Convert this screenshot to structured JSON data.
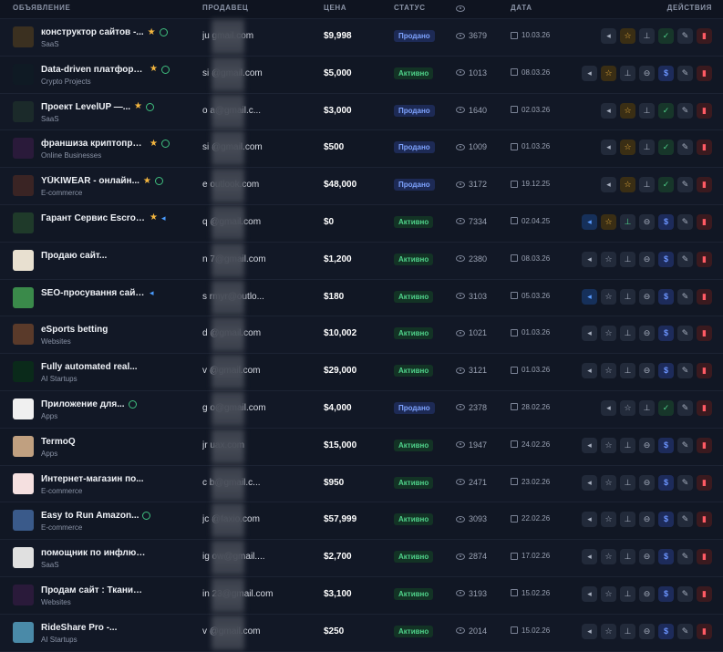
{
  "header": {
    "listing": "ОБЪЯВЛЕНИЕ",
    "seller": "ПРОДАВЕЦ",
    "price": "ЦЕНА",
    "status": "СТАТУС",
    "date": "ДАТА",
    "actions": "ДЕЙСТВИЯ"
  },
  "rows": [
    {
      "title": "конструктор сайтов -...",
      "category": "SaaS",
      "star": true,
      "check": true,
      "promo": false,
      "seller": "ju        gmail.com",
      "price": "$9,998",
      "status": "Продано",
      "status_type": "sold",
      "views": "3679",
      "date": "10.03.26",
      "thumb": "#3b3020",
      "promo_btn": false,
      "star_btn": "gold",
      "dollar": false
    },
    {
      "title": "Data-driven платформа...",
      "category": "Crypto Projects",
      "star": true,
      "check": true,
      "promo": false,
      "seller": "si        @gmail.com",
      "price": "$5,000",
      "status": "Активно",
      "status_type": "active",
      "views": "1013",
      "date": "08.03.26",
      "thumb": "#0f1a24",
      "promo_btn": false,
      "star_btn": "gold",
      "dollar": true
    },
    {
      "title": "Проект LevelUP —...",
      "category": "SaaS",
      "star": true,
      "check": true,
      "promo": false,
      "seller": "o        a@gmail.c...",
      "price": "$3,000",
      "status": "Продано",
      "status_type": "sold",
      "views": "1640",
      "date": "02.03.26",
      "thumb": "#1b2a2a",
      "promo_btn": false,
      "star_btn": "gold",
      "dollar": false
    },
    {
      "title": "франшиза криптопроекта",
      "category": "Online Businesses",
      "star": true,
      "check": true,
      "promo": false,
      "seller": "si        @gmail.com",
      "price": "$500",
      "status": "Продано",
      "status_type": "sold",
      "views": "1009",
      "date": "01.03.26",
      "thumb": "#2a1a3a",
      "promo_btn": false,
      "star_btn": "gold",
      "dollar": false
    },
    {
      "title": "YŪKIWEAR - онлайн...",
      "category": "E-commerce",
      "star": true,
      "check": true,
      "promo": false,
      "seller": "e        outlook.com",
      "price": "$48,000",
      "status": "Продано",
      "status_type": "sold",
      "views": "3172",
      "date": "19.12.25",
      "thumb": "#3a2424",
      "promo_btn": false,
      "star_btn": "gold",
      "dollar": false
    },
    {
      "title": "Гарант Сервис Escrow...",
      "category": "",
      "star": true,
      "check": false,
      "promo": true,
      "seller": "q        @gmail.com",
      "price": "$0",
      "status": "Активно",
      "status_type": "active",
      "views": "7334",
      "date": "02.04.25",
      "thumb": "#1f3a2a",
      "promo_btn": true,
      "star_btn": "gold",
      "dollar": true,
      "pin_green": true
    },
    {
      "title": "Продаю сайт...",
      "category": "",
      "star": false,
      "check": false,
      "promo": false,
      "seller": "n        7@gmail.com",
      "price": "$1,200",
      "status": "Активно",
      "status_type": "active",
      "views": "2380",
      "date": "08.03.26",
      "thumb": "#e8e0d0",
      "promo_btn": false,
      "star_btn": "plain",
      "dollar": true
    },
    {
      "title": "SEO-просування сайтів",
      "category": "",
      "star": false,
      "check": false,
      "promo": true,
      "seller": "s        rmyr@outlo...",
      "price": "$180",
      "status": "Активно",
      "status_type": "active",
      "views": "3103",
      "date": "05.03.26",
      "thumb": "#3a8a4a",
      "promo_btn": true,
      "star_btn": "plain",
      "dollar": true
    },
    {
      "title": "eSports betting",
      "category": "Websites",
      "star": false,
      "check": false,
      "promo": false,
      "seller": "d        @gmail.com",
      "price": "$10,002",
      "status": "Активно",
      "status_type": "active",
      "views": "1021",
      "date": "01.03.26",
      "thumb": "#5a3a2a",
      "promo_btn": false,
      "star_btn": "plain",
      "dollar": true
    },
    {
      "title": "Fully automated real...",
      "category": "AI Startups",
      "star": false,
      "check": false,
      "promo": false,
      "seller": "v        @gmail.com",
      "price": "$29,000",
      "status": "Активно",
      "status_type": "active",
      "views": "3121",
      "date": "01.03.26",
      "thumb": "#0a2a1a",
      "promo_btn": false,
      "star_btn": "plain",
      "dollar": true
    },
    {
      "title": "Приложение для...",
      "category": "Apps",
      "star": false,
      "check": true,
      "promo": false,
      "seller": "g        o@gmail.com",
      "price": "$4,000",
      "status": "Продано",
      "status_type": "sold",
      "views": "2378",
      "date": "28.02.26",
      "thumb": "#f0f0f0",
      "promo_btn": false,
      "star_btn": "plain",
      "dollar": false,
      "check_btn": true
    },
    {
      "title": "TermoQ",
      "category": "Apps",
      "star": false,
      "check": false,
      "promo": false,
      "seller": "jr        uax.com",
      "price": "$15,000",
      "status": "Активно",
      "status_type": "active",
      "views": "1947",
      "date": "24.02.26",
      "thumb": "#c0a080",
      "promo_btn": false,
      "star_btn": "plain",
      "dollar": true
    },
    {
      "title": "Интернет-магазин по...",
      "category": "E-commerce",
      "star": false,
      "check": false,
      "promo": false,
      "seller": "c        b@gmail.c...",
      "price": "$950",
      "status": "Активно",
      "status_type": "active",
      "views": "2471",
      "date": "23.02.26",
      "thumb": "#f5e0e0",
      "promo_btn": false,
      "star_btn": "plain",
      "dollar": true
    },
    {
      "title": "Easy to Run Amazon...",
      "category": "E-commerce",
      "star": false,
      "check": true,
      "promo": false,
      "seller": "jc        @faxio.com",
      "price": "$57,999",
      "status": "Активно",
      "status_type": "active",
      "views": "3093",
      "date": "22.02.26",
      "thumb": "#3a5a8a",
      "promo_btn": false,
      "star_btn": "plain",
      "dollar": true
    },
    {
      "title": "помощник по инфлюен...",
      "category": "SaaS",
      "star": false,
      "check": false,
      "promo": false,
      "seller": "ig        ow@gmail....",
      "price": "$2,700",
      "status": "Активно",
      "status_type": "active",
      "views": "2874",
      "date": "17.02.26",
      "thumb": "#e0e0e0",
      "promo_btn": false,
      "star_btn": "plain",
      "dollar": true
    },
    {
      "title": "Продам сайт : Тканинні...",
      "category": "Websites",
      "star": false,
      "check": false,
      "promo": false,
      "seller": "in        23@gmail.com",
      "price": "$3,100",
      "status": "Активно",
      "status_type": "active",
      "views": "3193",
      "date": "15.02.26",
      "thumb": "#2a1a3a",
      "promo_btn": false,
      "star_btn": "plain",
      "dollar": true
    },
    {
      "title": "RideShare Pro -...",
      "category": "AI Startups",
      "star": false,
      "check": false,
      "promo": false,
      "seller": "v        @gmail.com",
      "price": "$250",
      "status": "Активно",
      "status_type": "active",
      "views": "2014",
      "date": "15.02.26",
      "thumb": "#4a8aa8",
      "promo_btn": false,
      "star_btn": "plain",
      "dollar": true
    }
  ]
}
